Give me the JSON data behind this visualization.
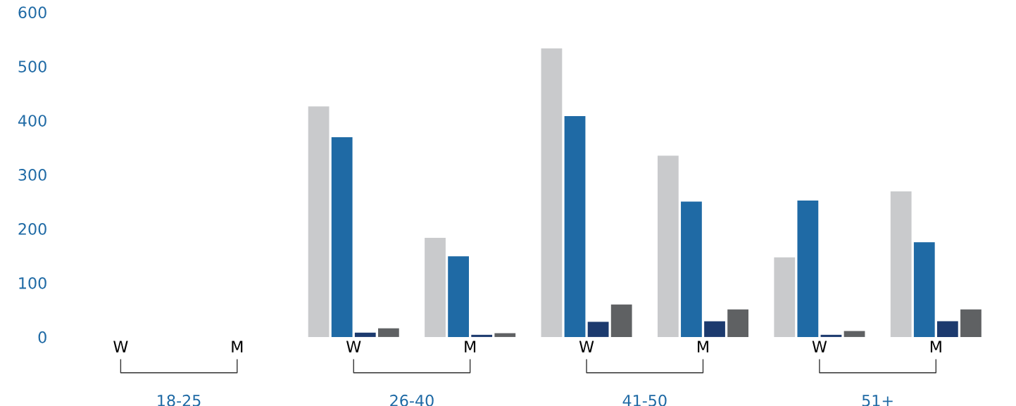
{
  "chart_data": {
    "type": "bar",
    "categories": [
      "W",
      "M",
      "W",
      "M",
      "W",
      "M",
      "W",
      "M"
    ],
    "series": [
      {
        "color": "#c9cacc",
        "values": [
          null,
          null,
          426,
          183,
          533,
          335,
          147,
          269
        ]
      },
      {
        "color": "#1f6aa5",
        "values": [
          null,
          null,
          369,
          149,
          408,
          250,
          252,
          175
        ]
      },
      {
        "color": "#1c3a6e",
        "values": [
          null,
          null,
          8,
          4,
          28,
          29,
          4,
          29
        ]
      },
      {
        "color": "#5f6163",
        "values": [
          null,
          null,
          16,
          7,
          60,
          51,
          11,
          51
        ]
      }
    ],
    "ylim": [
      0,
      600
    ],
    "yticks": [
      0,
      100,
      200,
      300,
      400,
      500,
      600
    ],
    "annotations": [
      "18-25",
      "26-40",
      "41-50",
      "51+"
    ],
    "grid": false,
    "legend": false
  }
}
